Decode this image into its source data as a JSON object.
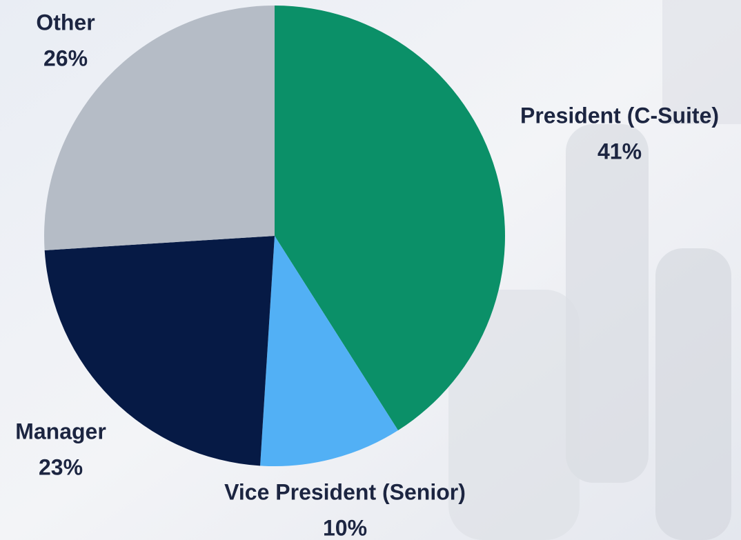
{
  "chart_data": {
    "type": "pie",
    "categories": [
      "President (C-Suite)",
      "Vice President (Senior)",
      "Manager",
      "Other"
    ],
    "values": [
      41,
      10,
      23,
      26
    ],
    "value_labels": [
      "41%",
      "10%",
      "23%",
      "26%"
    ],
    "colors": [
      "#0b9068",
      "#52b0f5",
      "#061a45",
      "#b5bcc6"
    ]
  }
}
